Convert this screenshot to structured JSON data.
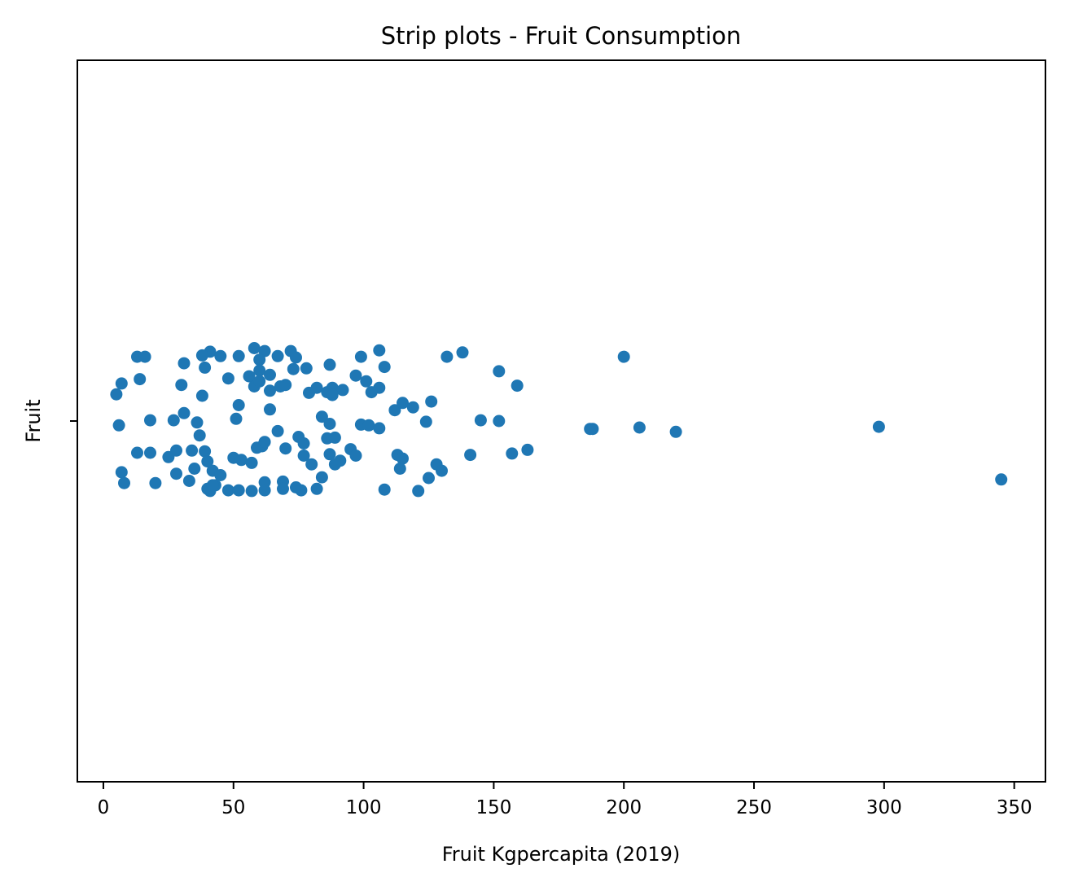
{
  "chart_data": {
    "type": "scatter",
    "title": "Strip plots - Fruit Consumption",
    "xlabel": "Fruit Kgpercapita (2019)",
    "ylabel": "Fruit",
    "xlim": [
      -10,
      362
    ],
    "ylim": [
      -0.5,
      0.5
    ],
    "xticks": [
      0,
      50,
      100,
      150,
      200,
      250,
      300,
      350
    ],
    "ytick_labels": [
      ""
    ],
    "grid": false,
    "marker_color": "#1f77b4",
    "series": [
      {
        "points": [
          [
            13,
            0.089
          ],
          [
            16,
            0.089
          ],
          [
            31,
            0.08
          ],
          [
            41,
            0.096
          ],
          [
            45,
            0.09
          ],
          [
            38,
            0.091
          ],
          [
            52,
            0.09
          ],
          [
            58,
            0.101
          ],
          [
            62,
            0.097
          ],
          [
            60,
            0.085
          ],
          [
            67,
            0.09
          ],
          [
            72,
            0.097
          ],
          [
            74,
            0.088
          ],
          [
            78,
            0.073
          ],
          [
            87,
            0.078
          ],
          [
            99,
            0.089
          ],
          [
            106,
            0.098
          ],
          [
            108,
            0.075
          ],
          [
            132,
            0.089
          ],
          [
            138,
            0.095
          ],
          [
            200,
            0.089
          ],
          [
            7,
            0.052
          ],
          [
            14,
            0.058
          ],
          [
            5,
            0.037
          ],
          [
            30,
            0.05
          ],
          [
            39,
            0.074
          ],
          [
            48,
            0.059
          ],
          [
            56,
            0.062
          ],
          [
            60,
            0.07
          ],
          [
            64,
            0.064
          ],
          [
            68,
            0.048
          ],
          [
            73,
            0.072
          ],
          [
            79,
            0.039
          ],
          [
            82,
            0.046
          ],
          [
            88,
            0.046
          ],
          [
            92,
            0.043
          ],
          [
            97,
            0.063
          ],
          [
            101,
            0.055
          ],
          [
            106,
            0.046
          ],
          [
            103,
            0.04
          ],
          [
            152,
            0.069
          ],
          [
            159,
            0.049
          ],
          [
            58,
            0.048
          ],
          [
            64,
            0.042
          ],
          [
            70,
            0.05
          ],
          [
            86,
            0.04
          ],
          [
            38,
            0.035
          ],
          [
            60,
            0.055
          ],
          [
            31,
            0.011
          ],
          [
            52,
            0.022
          ],
          [
            64,
            0.016
          ],
          [
            51,
            0.003
          ],
          [
            112,
            0.015
          ],
          [
            115,
            0.025
          ],
          [
            119,
            0.019
          ],
          [
            126,
            0.027
          ],
          [
            88,
            0.036
          ],
          [
            6,
            -0.006
          ],
          [
            18,
            0.001
          ],
          [
            27,
            0.001
          ],
          [
            36,
            -0.002
          ],
          [
            84,
            0.006
          ],
          [
            87,
            -0.004
          ],
          [
            99,
            -0.005
          ],
          [
            102,
            -0.006
          ],
          [
            106,
            -0.01
          ],
          [
            124,
            -0.001
          ],
          [
            145,
            0.001
          ],
          [
            152,
            0
          ],
          [
            187,
            -0.011
          ],
          [
            188,
            -0.011
          ],
          [
            206,
            -0.009
          ],
          [
            220,
            -0.015
          ],
          [
            298,
            -0.008
          ],
          [
            37,
            -0.02
          ],
          [
            61,
            -0.035
          ],
          [
            67,
            -0.014
          ],
          [
            75,
            -0.022
          ],
          [
            77,
            -0.031
          ],
          [
            86,
            -0.024
          ],
          [
            89,
            -0.023
          ],
          [
            13,
            -0.044
          ],
          [
            18,
            -0.044
          ],
          [
            25,
            -0.05
          ],
          [
            28,
            -0.041
          ],
          [
            34,
            -0.041
          ],
          [
            39,
            -0.042
          ],
          [
            50,
            -0.051
          ],
          [
            53,
            -0.054
          ],
          [
            57,
            -0.058
          ],
          [
            59,
            -0.037
          ],
          [
            62,
            -0.029
          ],
          [
            70,
            -0.038
          ],
          [
            77,
            -0.048
          ],
          [
            87,
            -0.046
          ],
          [
            91,
            -0.055
          ],
          [
            95,
            -0.039
          ],
          [
            97,
            -0.048
          ],
          [
            113,
            -0.047
          ],
          [
            115,
            -0.052
          ],
          [
            141,
            -0.047
          ],
          [
            157,
            -0.045
          ],
          [
            163,
            -0.04
          ],
          [
            7,
            -0.071
          ],
          [
            8,
            -0.086
          ],
          [
            20,
            -0.086
          ],
          [
            28,
            -0.073
          ],
          [
            33,
            -0.083
          ],
          [
            35,
            -0.066
          ],
          [
            40,
            -0.056
          ],
          [
            42,
            -0.069
          ],
          [
            45,
            -0.075
          ],
          [
            40,
            -0.094
          ],
          [
            43,
            -0.089
          ],
          [
            48,
            -0.096
          ],
          [
            52,
            -0.096
          ],
          [
            57,
            -0.097
          ],
          [
            62,
            -0.085
          ],
          [
            62,
            -0.096
          ],
          [
            69,
            -0.084
          ],
          [
            69,
            -0.094
          ],
          [
            74,
            -0.092
          ],
          [
            80,
            -0.06
          ],
          [
            84,
            -0.078
          ],
          [
            89,
            -0.06
          ],
          [
            114,
            -0.066
          ],
          [
            128,
            -0.06
          ],
          [
            130,
            -0.069
          ],
          [
            125,
            -0.079
          ],
          [
            108,
            -0.095
          ],
          [
            121,
            -0.097
          ],
          [
            82,
            -0.094
          ],
          [
            76,
            -0.096
          ],
          [
            345,
            -0.081
          ],
          [
            41,
            -0.097
          ],
          [
            42,
            -0.089
          ]
        ]
      }
    ]
  }
}
